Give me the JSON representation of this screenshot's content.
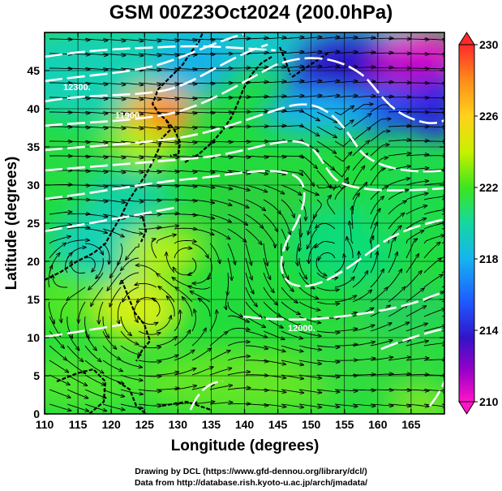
{
  "title": "GSM 00Z23Oct2024 (200.0hPa)",
  "x_axis": {
    "label": "Longitude (degrees)",
    "ticks": [
      "110",
      "115",
      "120",
      "125",
      "130",
      "135",
      "140",
      "145",
      "150",
      "155",
      "160",
      "165"
    ],
    "range": [
      110,
      170
    ]
  },
  "y_axis": {
    "label": "Latitude  (degrees)",
    "ticks": [
      "0",
      "5",
      "10",
      "15",
      "20",
      "25",
      "30",
      "35",
      "40",
      "45"
    ],
    "range": [
      0,
      50
    ]
  },
  "colorbar": {
    "labels": [
      "230",
      "226",
      "222",
      "218",
      "214",
      "210"
    ],
    "range": [
      210,
      230
    ],
    "colors": [
      "#ff2a2a",
      "#ff8c1a",
      "#ffd21a",
      "#c8f000",
      "#3ce61e",
      "#16d7a0",
      "#16b4f0",
      "#1e5aff",
      "#3214c8",
      "#9600c8",
      "#ff14c8"
    ]
  },
  "contour_labels": [
    "12300.",
    "11900.",
    "12000."
  ],
  "credits": {
    "line1": "Drawing by DCL (https://www.gfd-dennou.org/library/dcl/)",
    "line2": "Data from http://database.rish.kyoto-u.ac.jp/arch/jmadata/"
  },
  "map_data": {
    "field": "temperature (colour) with geopotential height contours (white) and wind streamlines",
    "features": [
      {
        "name": "warm-spot",
        "lon": 127,
        "lat": 41,
        "value": 228
      },
      {
        "name": "cold-trough",
        "lon": 152,
        "lat": 47,
        "value": 212
      },
      {
        "name": "cold-northeast",
        "lon": 164,
        "lat": 44,
        "value": 213
      },
      {
        "name": "philippine-warm",
        "lon": 125,
        "lat": 15,
        "value": 224
      },
      {
        "name": "cool-jet",
        "lon": 112,
        "lat": 45,
        "value": 219
      }
    ]
  }
}
